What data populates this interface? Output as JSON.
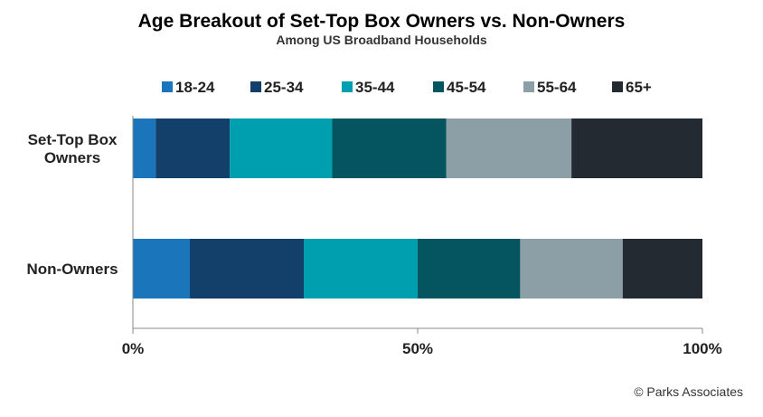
{
  "chart_data": {
    "type": "bar",
    "orientation": "horizontal",
    "stacked": true,
    "title": "Age Breakout of Set-Top Box Owners vs. Non-Owners",
    "subtitle": "Among US Broadband Households",
    "categories": [
      [
        "Set-Top Box",
        "Owners"
      ],
      [
        "Non-Owners"
      ]
    ],
    "series": [
      {
        "name": "18-24",
        "color": "#1b75bb",
        "values": [
          4,
          10
        ]
      },
      {
        "name": "25-34",
        "color": "#12406b",
        "values": [
          13,
          20
        ]
      },
      {
        "name": "35-44",
        "color": "#009faf",
        "values": [
          18,
          20
        ]
      },
      {
        "name": "45-54",
        "color": "#045560",
        "values": [
          20,
          18
        ]
      },
      {
        "name": "55-64",
        "color": "#8c9ea6",
        "values": [
          22,
          18
        ]
      },
      {
        "name": "65+",
        "color": "#232a31",
        "values": [
          23,
          14
        ]
      }
    ],
    "x_ticks": [
      "0%",
      "50%",
      "100%"
    ],
    "xlim": [
      0,
      100
    ],
    "grid": false,
    "legend_position": "top"
  },
  "source": "© Parks Associates"
}
